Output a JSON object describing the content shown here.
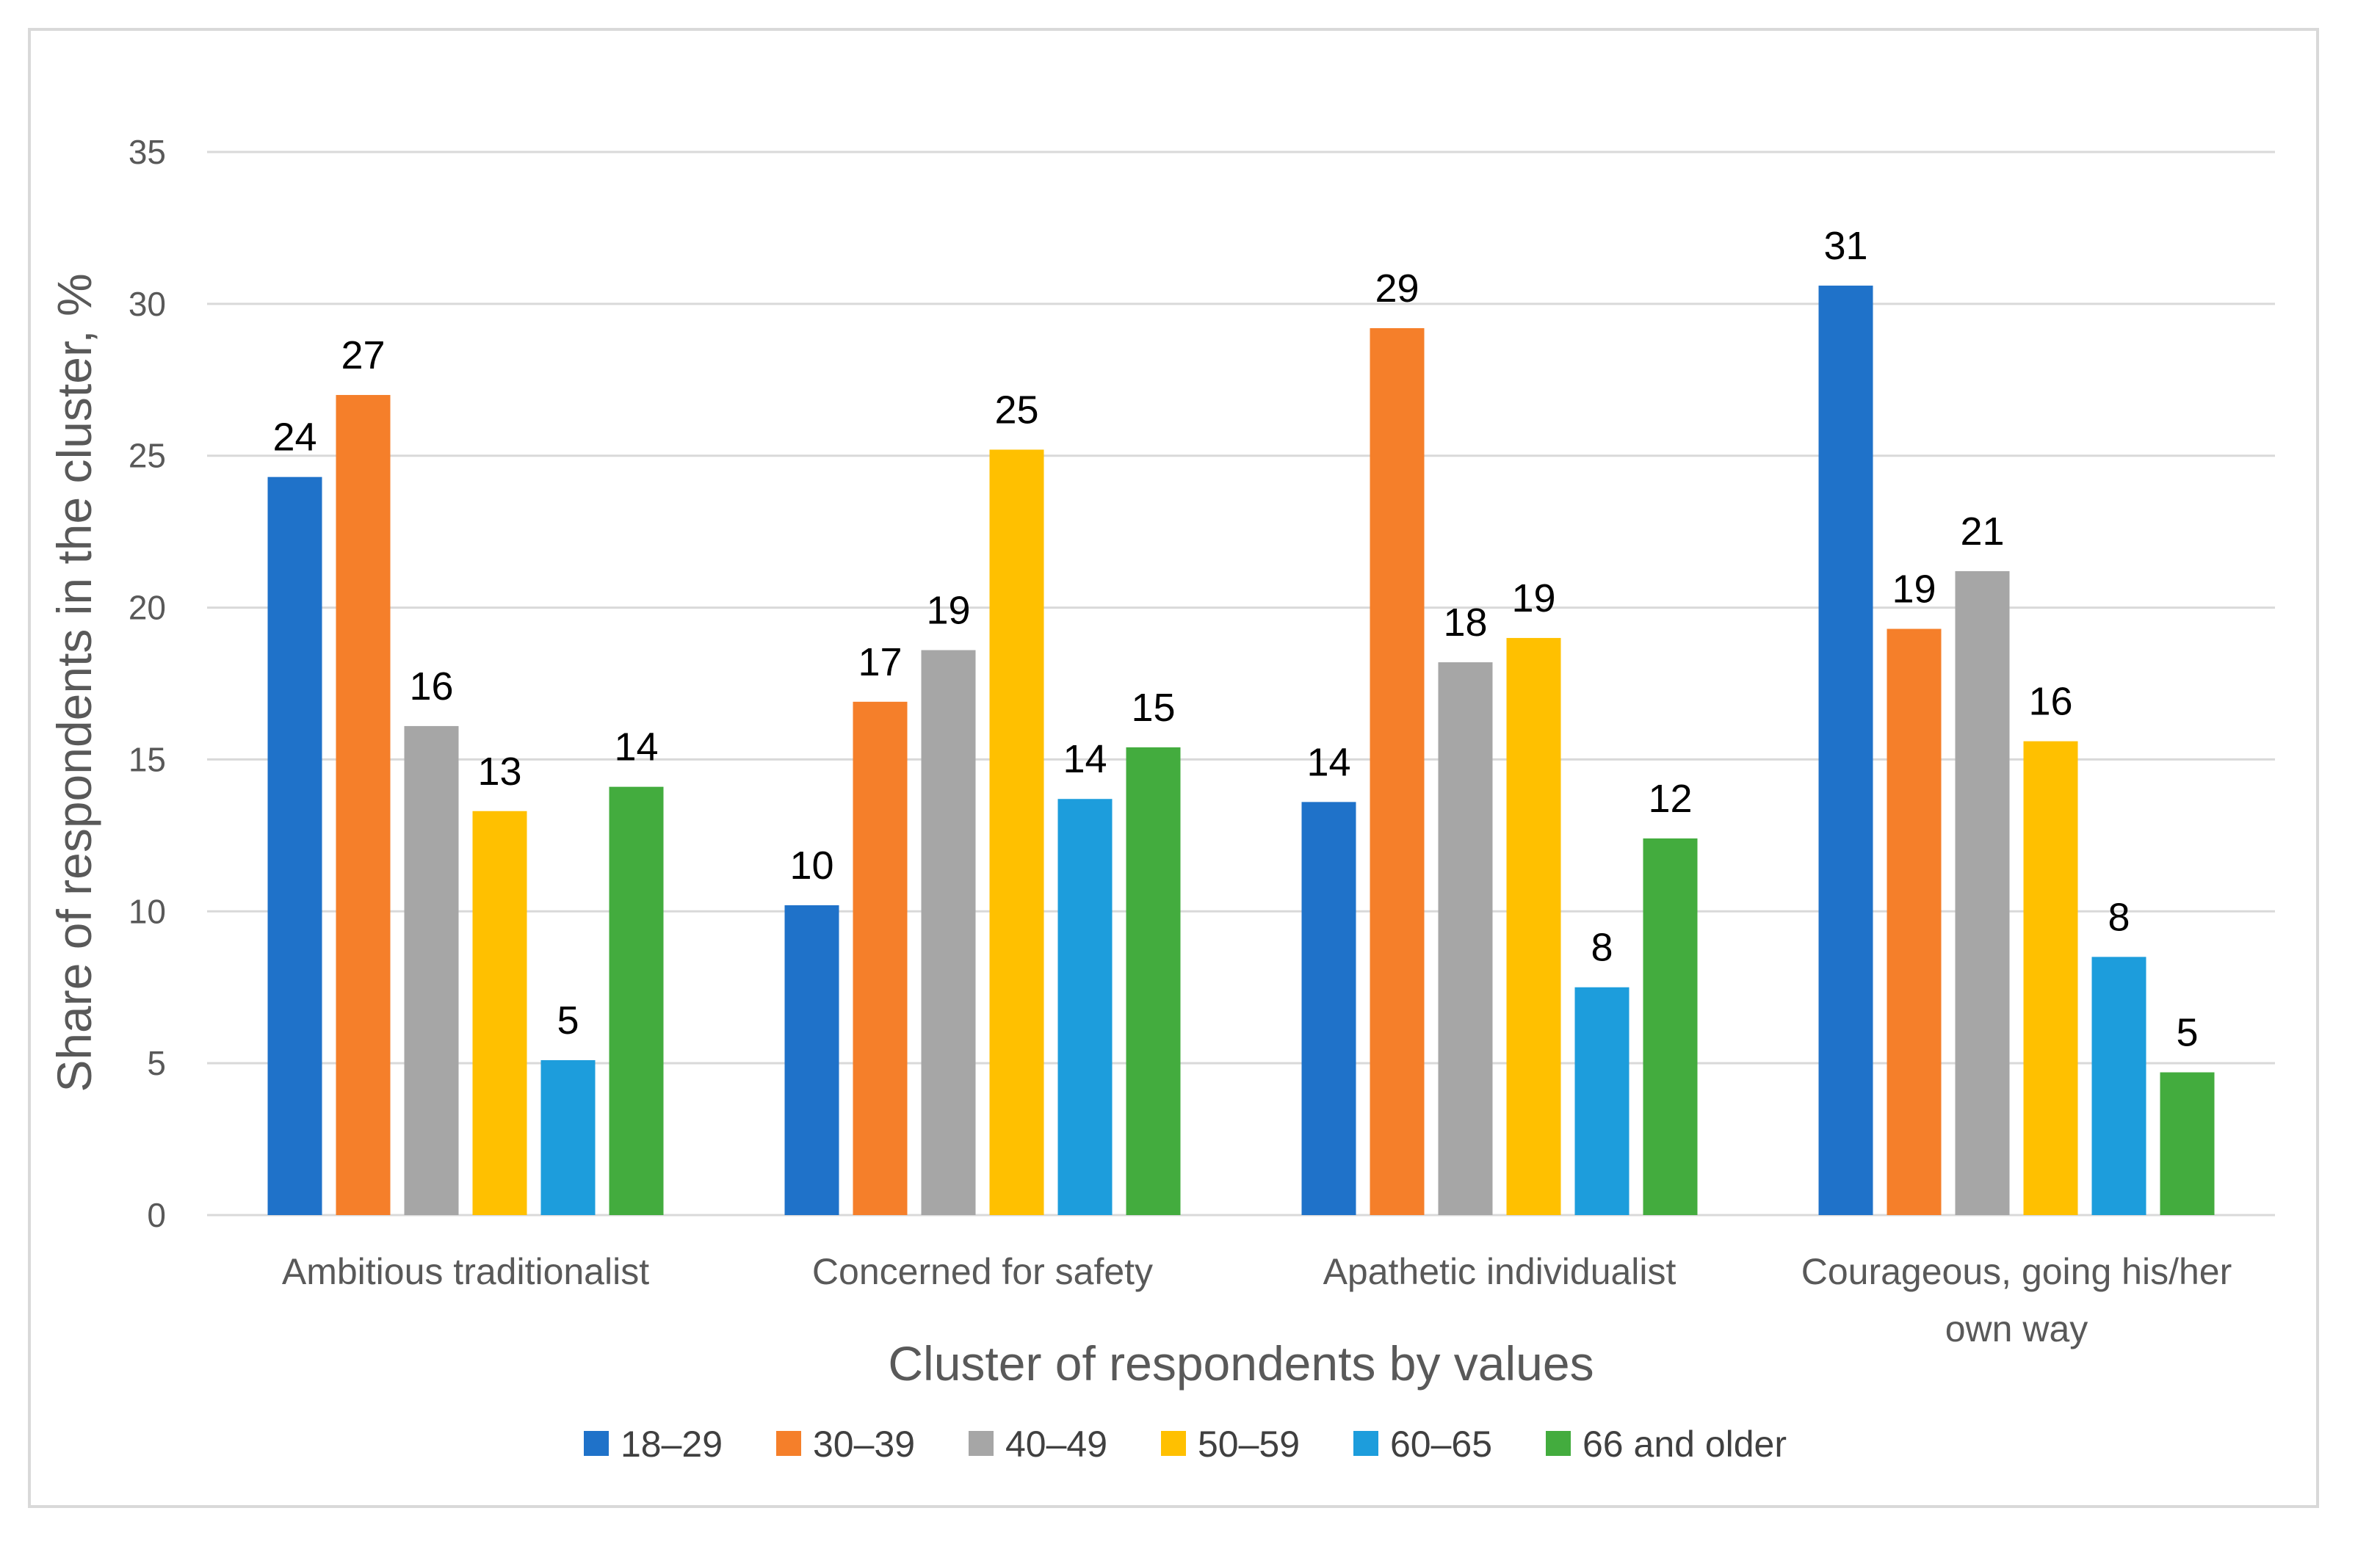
{
  "chart_data": {
    "type": "bar",
    "title": "",
    "xlabel": "Cluster of respondents by values",
    "ylabel": "Share of respondents in the cluster, %",
    "ylim": [
      0,
      35
    ],
    "yticks": [
      0,
      5,
      10,
      15,
      20,
      25,
      30,
      35
    ],
    "grid": true,
    "legend_position": "bottom",
    "categories": [
      [
        "Ambitious traditionalist"
      ],
      [
        "Concerned for safety"
      ],
      [
        "Apathetic individualist"
      ],
      [
        "Courageous, going his/her",
        "own way"
      ]
    ],
    "series": [
      {
        "name": "18–29",
        "color": "#1f72c9",
        "values": [
          24.3,
          10.2,
          13.6,
          30.6
        ],
        "labels": [
          "24",
          "10",
          "14",
          "31"
        ]
      },
      {
        "name": "30–39",
        "color": "#f57f2a",
        "values": [
          27.0,
          16.9,
          29.2,
          19.3
        ],
        "labels": [
          "27",
          "17",
          "29",
          "19"
        ]
      },
      {
        "name": "40–49",
        "color": "#a6a6a6",
        "values": [
          16.1,
          18.6,
          18.2,
          21.2
        ],
        "labels": [
          "16",
          "19",
          "18",
          "21"
        ]
      },
      {
        "name": "50–59",
        "color": "#ffc000",
        "values": [
          13.3,
          25.2,
          19.0,
          15.6
        ],
        "labels": [
          "13",
          "25",
          "19",
          "16"
        ]
      },
      {
        "name": "60–65",
        "color": "#1d9ddc",
        "values": [
          5.1,
          13.7,
          7.5,
          8.5
        ],
        "labels": [
          "5",
          "14",
          "8",
          "8"
        ]
      },
      {
        "name": "66 and older",
        "color": "#43ac3e",
        "values": [
          14.1,
          15.4,
          12.4,
          4.7
        ],
        "labels": [
          "14",
          "15",
          "12",
          "5"
        ]
      }
    ]
  }
}
